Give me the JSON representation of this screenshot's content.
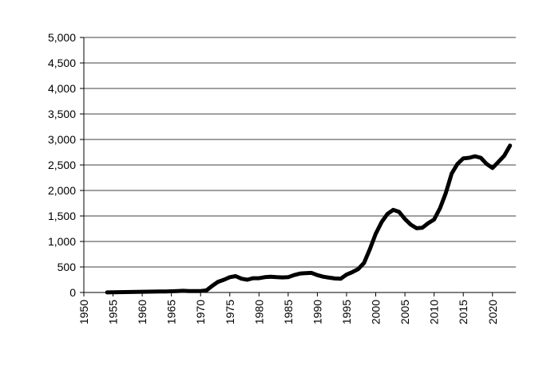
{
  "chart_data": {
    "type": "line",
    "title": "",
    "xlabel": "",
    "ylabel": "",
    "xlim": [
      1950,
      2024
    ],
    "ylim": [
      0,
      5000
    ],
    "grid": "horizontal",
    "legend": "none",
    "line_color": "#000000",
    "y_ticks": [
      0,
      500,
      1000,
      1500,
      2000,
      2500,
      3000,
      3500,
      4000,
      4500,
      5000
    ],
    "y_tick_labels": [
      "0",
      "500",
      "1,000",
      "1,500",
      "2,000",
      "2,500",
      "3,000",
      "3,500",
      "4,000",
      "4,500",
      "5,000"
    ],
    "x_ticks": [
      1950,
      1955,
      1960,
      1965,
      1970,
      1975,
      1980,
      1985,
      1990,
      1995,
      2000,
      2005,
      2010,
      2015,
      2020
    ],
    "x_tick_labels": [
      "1950",
      "1955",
      "1960",
      "1965",
      "1970",
      "1975",
      "1980",
      "1985",
      "1990",
      "1995",
      "2000",
      "2005",
      "2010",
      "2015",
      "2020"
    ],
    "series": [
      {
        "x": [
          1954,
          1955,
          1956,
          1957,
          1958,
          1959,
          1960,
          1961,
          1962,
          1963,
          1964,
          1965,
          1966,
          1967,
          1968,
          1969,
          1970,
          1971,
          1972,
          1973,
          1974,
          1975,
          1976,
          1977,
          1978,
          1979,
          1980,
          1981,
          1982,
          1983,
          1984,
          1985,
          1986,
          1987,
          1988,
          1989,
          1990,
          1991,
          1992,
          1993,
          1994,
          1995,
          1996,
          1997,
          1998,
          1999,
          2000,
          2001,
          2002,
          2003,
          2004,
          2005,
          2006,
          2007,
          2008,
          2009,
          2010,
          2011,
          2012,
          2013,
          2014,
          2015,
          2016,
          2017,
          2018,
          2019,
          2020,
          2021,
          2022,
          2023
        ],
        "values": [
          2,
          5,
          6,
          8,
          10,
          12,
          14,
          16,
          17,
          18,
          20,
          24,
          28,
          33,
          28,
          26,
          28,
          40,
          130,
          210,
          250,
          300,
          320,
          270,
          250,
          280,
          280,
          300,
          310,
          300,
          295,
          300,
          340,
          370,
          380,
          385,
          340,
          310,
          290,
          275,
          270,
          350,
          400,
          460,
          580,
          850,
          1150,
          1380,
          1540,
          1620,
          1580,
          1440,
          1330,
          1260,
          1270,
          1360,
          1430,
          1650,
          1950,
          2330,
          2520,
          2630,
          2640,
          2670,
          2640,
          2520,
          2440,
          2560,
          2680,
          2880
        ]
      }
    ]
  }
}
